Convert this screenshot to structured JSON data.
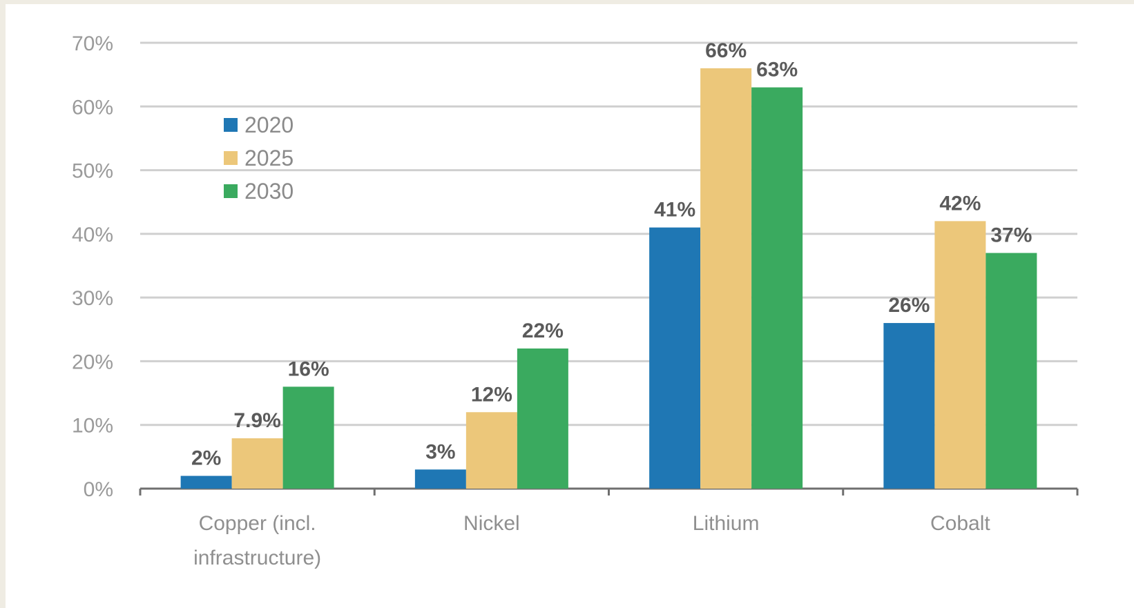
{
  "chart_data": {
    "type": "bar",
    "categories": [
      "Copper (incl. infrastructure)",
      "Nickel",
      "Lithium",
      "Cobalt"
    ],
    "category_lines": [
      [
        "Copper (incl.",
        "infrastructure)"
      ],
      [
        "Nickel"
      ],
      [
        "Lithium"
      ],
      [
        "Cobalt"
      ]
    ],
    "series": [
      {
        "name": "2020",
        "color": "#1f77b4",
        "values": [
          2,
          3,
          41,
          26
        ],
        "labels": [
          "2%",
          "3%",
          "41%",
          "26%"
        ]
      },
      {
        "name": "2025",
        "color": "#ecc77a",
        "values": [
          7.9,
          12,
          66,
          42
        ],
        "labels": [
          "7.9%",
          "12%",
          "66%",
          "42%"
        ]
      },
      {
        "name": "2030",
        "color": "#3aaa5f",
        "values": [
          16,
          22,
          63,
          37
        ],
        "labels": [
          "16%",
          "22%",
          "63%",
          "37%"
        ]
      }
    ],
    "ylim": [
      0,
      70
    ],
    "yticks": [
      0,
      10,
      20,
      30,
      40,
      50,
      60,
      70
    ],
    "ytick_labels": [
      "0%",
      "10%",
      "20%",
      "30%",
      "40%",
      "50%",
      "60%",
      "70%"
    ],
    "grid": true,
    "legend": "top-left",
    "title": "",
    "xlabel": "",
    "ylabel": ""
  }
}
